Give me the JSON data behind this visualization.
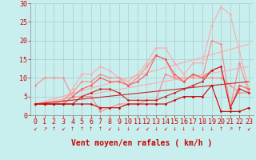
{
  "xlabel": "Vent moyen/en rafales ( km/h )",
  "bg_color": "#c8eeee",
  "grid_color": "#aacccc",
  "xlim": [
    -0.5,
    23.5
  ],
  "ylim": [
    0,
    30
  ],
  "yticks": [
    0,
    5,
    10,
    15,
    20,
    25,
    30
  ],
  "xticks": [
    0,
    1,
    2,
    3,
    4,
    5,
    6,
    7,
    8,
    9,
    10,
    11,
    12,
    13,
    14,
    15,
    16,
    17,
    18,
    19,
    20,
    21,
    22,
    23
  ],
  "series": [
    {
      "comment": "lightest pink - wide triangle top (rafales max line)",
      "x": [
        0,
        1,
        2,
        3,
        4,
        5,
        6,
        7,
        8,
        9,
        10,
        11,
        12,
        13,
        14,
        15,
        16,
        17,
        18,
        19,
        20,
        21,
        22,
        23
      ],
      "y": [
        3,
        3,
        3,
        4,
        7,
        11,
        11,
        13,
        12,
        10,
        9,
        11,
        14,
        18,
        18,
        14,
        11,
        14,
        14,
        24,
        29,
        27,
        17,
        7
      ],
      "color": "#ffaaaa",
      "lw": 0.8,
      "marker": "D",
      "ms": 1.5
    },
    {
      "comment": "medium pink - second triangle",
      "x": [
        0,
        1,
        2,
        3,
        4,
        5,
        6,
        7,
        8,
        9,
        10,
        11,
        12,
        13,
        14,
        15,
        16,
        17,
        18,
        19,
        20,
        21,
        22,
        23
      ],
      "y": [
        3,
        3,
        3,
        4,
        6,
        9,
        9,
        11,
        10,
        10,
        8,
        10,
        13,
        16,
        15,
        10,
        9,
        11,
        10,
        20,
        19,
        2,
        14,
        6
      ],
      "color": "#ff8888",
      "lw": 0.8,
      "marker": "D",
      "ms": 1.5
    },
    {
      "comment": "pink - upper mid",
      "x": [
        0,
        1,
        2,
        3,
        4,
        5,
        6,
        7,
        8,
        9,
        10,
        11,
        12,
        13,
        14,
        15,
        16,
        17,
        18,
        19,
        20,
        21,
        22,
        23
      ],
      "y": [
        8,
        10,
        10,
        10,
        5,
        5,
        5,
        1,
        2,
        3,
        3,
        3,
        4,
        4,
        11,
        10,
        10,
        10,
        10,
        10,
        10,
        8,
        6,
        6
      ],
      "color": "#ff8888",
      "lw": 0.8,
      "marker": "D",
      "ms": 1.5
    },
    {
      "comment": "pink diagonal straight line top",
      "x": [
        0,
        23
      ],
      "y": [
        3,
        19
      ],
      "color": "#ffaaaa",
      "lw": 0.8,
      "marker": null,
      "ms": 0
    },
    {
      "comment": "pink diagonal straight line mid",
      "x": [
        0,
        23
      ],
      "y": [
        3,
        13
      ],
      "color": "#ffaaaa",
      "lw": 0.8,
      "marker": null,
      "ms": 0
    },
    {
      "comment": "red-pink wiggly mid",
      "x": [
        0,
        1,
        2,
        3,
        4,
        5,
        6,
        7,
        8,
        9,
        10,
        11,
        12,
        13,
        14,
        15,
        16,
        17,
        18,
        19,
        20,
        21,
        22,
        23
      ],
      "y": [
        3,
        3,
        3,
        3,
        5,
        7,
        8,
        10,
        9,
        9,
        8,
        9,
        11,
        16,
        15,
        11,
        9,
        11,
        10,
        12,
        13,
        2,
        8,
        7
      ],
      "color": "#ff5555",
      "lw": 0.8,
      "marker": "D",
      "ms": 1.5
    },
    {
      "comment": "red diagonal straight line",
      "x": [
        0,
        23
      ],
      "y": [
        3,
        9
      ],
      "color": "#cc2222",
      "lw": 0.8,
      "marker": null,
      "ms": 0
    },
    {
      "comment": "red flat bottom line - main",
      "x": [
        0,
        1,
        2,
        3,
        4,
        5,
        6,
        7,
        8,
        9,
        10,
        11,
        12,
        13,
        14,
        15,
        16,
        17,
        18,
        19,
        20,
        21,
        22,
        23
      ],
      "y": [
        3,
        3,
        3,
        3,
        3,
        5,
        6,
        7,
        7,
        6,
        4,
        4,
        4,
        4,
        5,
        6,
        7,
        8,
        9,
        12,
        13,
        2,
        7,
        6
      ],
      "color": "#cc2222",
      "lw": 0.8,
      "marker": "D",
      "ms": 1.5
    },
    {
      "comment": "dark red flat near zero",
      "x": [
        0,
        1,
        2,
        3,
        4,
        5,
        6,
        7,
        8,
        9,
        10,
        11,
        12,
        13,
        14,
        15,
        16,
        17,
        18,
        19,
        20,
        21,
        22,
        23
      ],
      "y": [
        3,
        3,
        3,
        3,
        3,
        3,
        3,
        2,
        2,
        2,
        3,
        3,
        3,
        3,
        3,
        4,
        5,
        5,
        5,
        8,
        1,
        1,
        1,
        2
      ],
      "color": "#cc0000",
      "lw": 0.8,
      "marker": "D",
      "ms": 1.5
    }
  ],
  "wind_dirs": [
    "↙",
    "↗",
    "↑",
    "↙",
    "↑",
    "↑",
    "↑",
    "↑",
    "↙",
    "↓",
    "↓",
    "↙",
    "↙",
    "↓",
    "↙",
    "↓",
    "↓",
    "↓",
    "↓",
    "↓",
    "↑",
    "↗",
    "↑",
    "↙"
  ],
  "xlabel_color": "#cc0000",
  "xlabel_fontsize": 7,
  "tick_fontsize": 6,
  "tick_color": "#cc0000",
  "axis_color": "#888888"
}
